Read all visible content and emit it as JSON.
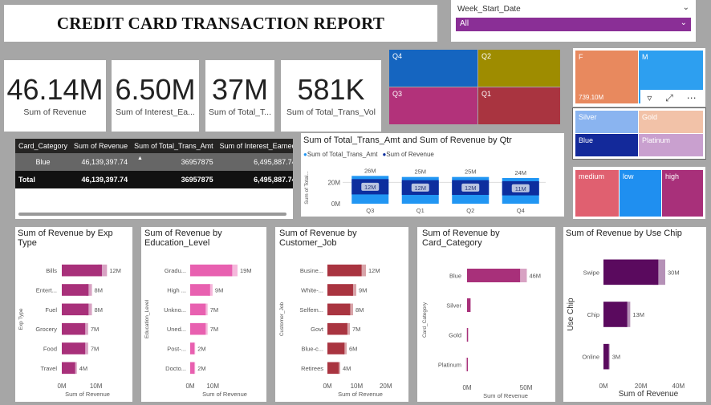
{
  "title": "CREDIT CARD TRANSACTION REPORT",
  "slicer": {
    "label": "Week_Start_Date",
    "value": "All"
  },
  "kpis": [
    {
      "value": "46.14M",
      "label": "Sum of Revenue"
    },
    {
      "value": "6.50M",
      "label": "Sum of Interest_Ea..."
    },
    {
      "value": "37M",
      "label": "Sum of Total_T..."
    },
    {
      "value": "581K",
      "label": "Sum of Total_Trans_Vol"
    }
  ],
  "treemap_qtr": [
    {
      "label": "Q4",
      "color": "#1565c0"
    },
    {
      "label": "Q2",
      "color": "#9e8c00"
    },
    {
      "label": "Q3",
      "color": "#b2327a"
    },
    {
      "label": "Q1",
      "color": "#a93440"
    }
  ],
  "treemap_gender": [
    {
      "label": "F",
      "sub": "739.10M",
      "color": "#e8895e"
    },
    {
      "label": "M",
      "sub": "",
      "color": "#2d9ff0"
    }
  ],
  "treemap_card": [
    {
      "label": "Silver",
      "color": "#8ab4f0"
    },
    {
      "label": "Gold",
      "color": "#f2c2a8"
    },
    {
      "label": "Blue",
      "color": "#13299a"
    },
    {
      "label": "Platinum",
      "color": "#c9a0cf"
    }
  ],
  "treemap_income": [
    {
      "label": "medium",
      "color": "#e06070"
    },
    {
      "label": "low",
      "color": "#1f8ff0"
    },
    {
      "label": "high",
      "color": "#a8307a"
    }
  ],
  "table": {
    "headers": [
      "Card_Category",
      "Sum of Revenue",
      "Sum of Total_Trans_Amt",
      "Sum of Interest_Earned"
    ],
    "rows": [
      [
        "Blue",
        "46,139,397.74",
        "36957875",
        "6,495,887.74"
      ]
    ],
    "total": [
      "Total",
      "46,139,397.74",
      "36957875",
      "6,495,887.74"
    ]
  },
  "qtr_chart": {
    "title": "Sum of Total_Trans_Amt and Sum of Revenue by Qtr",
    "legend": [
      "Sum of Total_Trans_Amt",
      "Sum of Revenue"
    ],
    "ylabel": "Sum of Total...",
    "colors": [
      "#2196f3",
      "#0d2e9e"
    ]
  },
  "icons": {
    "filter": "filter-icon",
    "focus": "focus-mode-icon",
    "more": "more-options-icon"
  },
  "chart_data": [
    {
      "type": "bar",
      "title": "Sum of Total_Trans_Amt and Sum of Revenue by Qtr",
      "categories": [
        "Q3",
        "Q1",
        "Q2",
        "Q4"
      ],
      "series": [
        {
          "name": "Sum of Total_Trans_Amt",
          "values": [
            26,
            25,
            25,
            24
          ]
        },
        {
          "name": "Sum of Revenue",
          "values": [
            12,
            12,
            12,
            11
          ]
        }
      ],
      "total_labels": [
        "26M",
        "25M",
        "25M",
        "24M"
      ],
      "seg_labels": [
        "12M",
        "12M",
        "12M",
        "11M"
      ],
      "ticks": [
        "0M",
        "20M"
      ],
      "ylim": [
        0,
        30
      ]
    },
    {
      "type": "bar",
      "title": "Sum of Revenue by Exp Type",
      "ylabel": "Exp Type",
      "xlabel": "Sum of Revenue",
      "categories": [
        "Bills",
        "Entert...",
        "Fuel",
        "Grocery",
        "Food",
        "Travel"
      ],
      "values": [
        12,
        8,
        8,
        7,
        7,
        4
      ],
      "labels": [
        "12M",
        "8M",
        "8M",
        "7M",
        "7M",
        "4M"
      ],
      "ticks": [
        "0M",
        "10M"
      ],
      "xlim": [
        0,
        15
      ],
      "color": "#a8307a"
    },
    {
      "type": "bar",
      "title": "Sum of Revenue by Education_Level",
      "ylabel": "Education_Level",
      "xlabel": "Sum of Revenue",
      "categories": [
        "Gradu...",
        "High ...",
        "Unkno...",
        "Uned...",
        "Post-...",
        "Docto..."
      ],
      "values": [
        19,
        9,
        7,
        7,
        2,
        2
      ],
      "labels": [
        "19M",
        "9M",
        "7M",
        "7M",
        "2M",
        "2M"
      ],
      "ticks": [
        "0M",
        "10M"
      ],
      "xlim": [
        0,
        28
      ],
      "color": "#e860b0"
    },
    {
      "type": "bar",
      "title": "Sum of Revenue by Customer_Job",
      "ylabel": "Customer_Job",
      "xlabel": "Sum of Revenue",
      "categories": [
        "Busine...",
        "White-...",
        "Selfem...",
        "Govt",
        "Blue-c...",
        "Retirees"
      ],
      "values": [
        12,
        9,
        8,
        7,
        6,
        4
      ],
      "labels": [
        "12M",
        "9M",
        "8M",
        "7M",
        "6M",
        "4M"
      ],
      "ticks": [
        "0M",
        "10M",
        "20M"
      ],
      "xlim": [
        0,
        22
      ],
      "color": "#a93440"
    },
    {
      "type": "bar",
      "title": "Sum of Revenue by Card_Category",
      "ylabel": "Card_Category",
      "xlabel": "Sum of Revenue",
      "categories": [
        "Blue",
        "Silver",
        "Gold",
        "Platinum"
      ],
      "values": [
        46,
        3,
        1,
        0.5
      ],
      "labels": [
        "46M",
        "",
        "",
        ""
      ],
      "ticks": [
        "0M",
        "50M"
      ],
      "xlim": [
        0,
        53
      ],
      "color": "#a8307a"
    },
    {
      "type": "bar",
      "title": "Sum of Revenue by Use Chip",
      "ylabel": "Use Chip",
      "xlabel": "Sum of Revenue",
      "categories": [
        "Swipe",
        "Chip",
        "Online"
      ],
      "values": [
        30,
        13,
        3
      ],
      "labels": [
        "30M",
        "13M",
        "3M"
      ],
      "ticks": [
        "0M",
        "20M",
        "40M"
      ],
      "xlim": [
        0,
        45
      ],
      "color": "#5a0a5e"
    }
  ]
}
